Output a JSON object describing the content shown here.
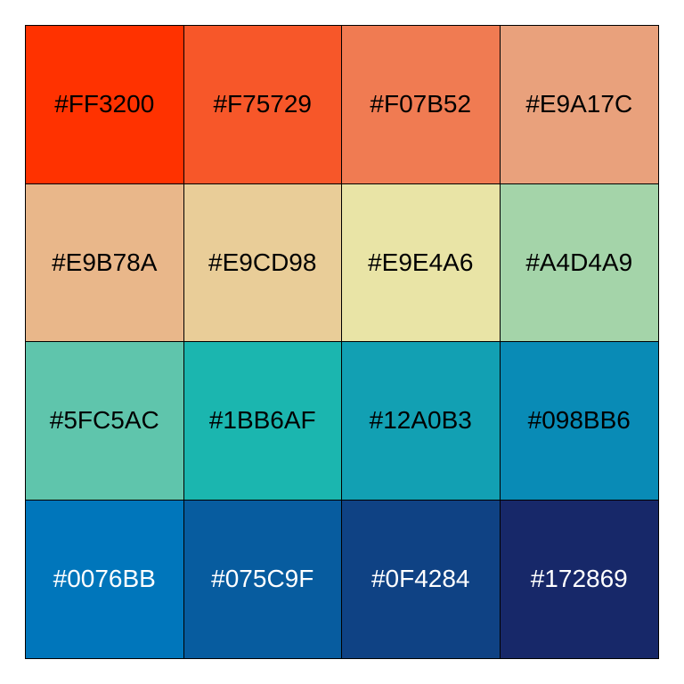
{
  "swatches": [
    {
      "label": "#FF3200",
      "color": "#FF3200",
      "text_color": "#000000"
    },
    {
      "label": "#F75729",
      "color": "#F75729",
      "text_color": "#000000"
    },
    {
      "label": "#F07B52",
      "color": "#F07B52",
      "text_color": "#000000"
    },
    {
      "label": "#E9A17C",
      "color": "#E9A17C",
      "text_color": "#000000"
    },
    {
      "label": "#E9B78A",
      "color": "#E9B78A",
      "text_color": "#000000"
    },
    {
      "label": "#E9CD98",
      "color": "#E9CD98",
      "text_color": "#000000"
    },
    {
      "label": "#E9E4A6",
      "color": "#E9E4A6",
      "text_color": "#000000"
    },
    {
      "label": "#A4D4A9",
      "color": "#A4D4A9",
      "text_color": "#000000"
    },
    {
      "label": "#5FC5AC",
      "color": "#5FC5AC",
      "text_color": "#000000"
    },
    {
      "label": "#1BB6AF",
      "color": "#1BB6AF",
      "text_color": "#000000"
    },
    {
      "label": "#12A0B3",
      "color": "#12A0B3",
      "text_color": "#000000"
    },
    {
      "label": "#098BB6",
      "color": "#098BB6",
      "text_color": "#000000"
    },
    {
      "label": "#0076BB",
      "color": "#0076BB",
      "text_color": "#FFFFFF"
    },
    {
      "label": "#075C9F",
      "color": "#075C9F",
      "text_color": "#FFFFFF"
    },
    {
      "label": "#0F4284",
      "color": "#0F4284",
      "text_color": "#FFFFFF"
    },
    {
      "label": "#172869",
      "color": "#172869",
      "text_color": "#FFFFFF"
    }
  ]
}
